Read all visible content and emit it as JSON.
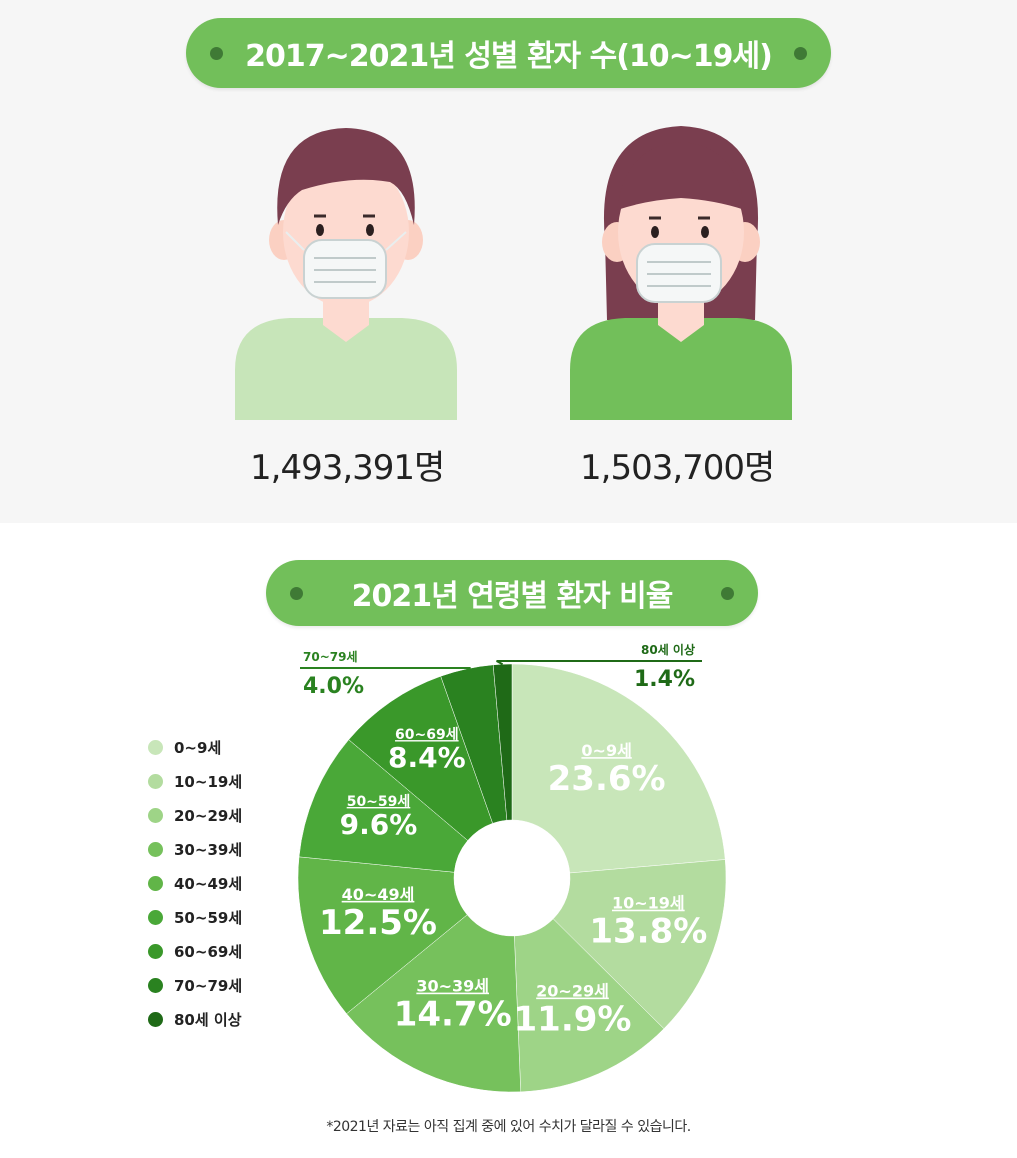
{
  "section1": {
    "title": "2017~2021년 성별 환자 수(10~19세)",
    "male": {
      "count": "1,493,391명",
      "shirt_color": "#c7e5b9"
    },
    "female": {
      "count": "1,503,700명",
      "shirt_color": "#72bf5a"
    }
  },
  "section2": {
    "title": "2021년 연령별 환자 비율"
  },
  "chart_data": {
    "type": "pie",
    "title": "2021년 연령별 환자 비율",
    "donut": true,
    "legend_position": "left",
    "slices": [
      {
        "label": "0~9세",
        "value": 23.6,
        "display": "23.6%",
        "color": "#c8e6b9"
      },
      {
        "label": "10~19세",
        "value": 13.8,
        "display": "13.8%",
        "color": "#b3dc9f"
      },
      {
        "label": "20~29세",
        "value": 11.9,
        "display": "11.9%",
        "color": "#9ed487"
      },
      {
        "label": "30~39세",
        "value": 14.7,
        "display": "14.7%",
        "color": "#76c15c"
      },
      {
        "label": "40~49세",
        "value": 12.5,
        "display": "12.5%",
        "color": "#61b548"
      },
      {
        "label": "50~59세",
        "value": 9.6,
        "display": "9.6%",
        "color": "#4aa838"
      },
      {
        "label": "60~69세",
        "value": 8.4,
        "display": "8.4%",
        "color": "#3a982a"
      },
      {
        "label": "70~79세",
        "value": 4.0,
        "display": "4.0%",
        "color": "#2a8220"
      },
      {
        "label": "80세 이상",
        "value": 1.4,
        "display": "1.4%",
        "color": "#1f6a17"
      }
    ]
  },
  "legend": [
    {
      "label": "0~9세",
      "color": "#c8e6b9"
    },
    {
      "label": "10~19세",
      "color": "#b3dc9f"
    },
    {
      "label": "20~29세",
      "color": "#9ed487"
    },
    {
      "label": "30~39세",
      "color": "#76c15c"
    },
    {
      "label": "40~49세",
      "color": "#61b548"
    },
    {
      "label": "50~59세",
      "color": "#4aa838"
    },
    {
      "label": "60~69세",
      "color": "#3a982a"
    },
    {
      "label": "70~79세",
      "color": "#2a8220"
    },
    {
      "label": "80세 이상",
      "color": "#1f6a17"
    }
  ],
  "footnote": "*2021년 자료는 아직 집계 중에 있어 수치가 달라질 수 있습니다."
}
